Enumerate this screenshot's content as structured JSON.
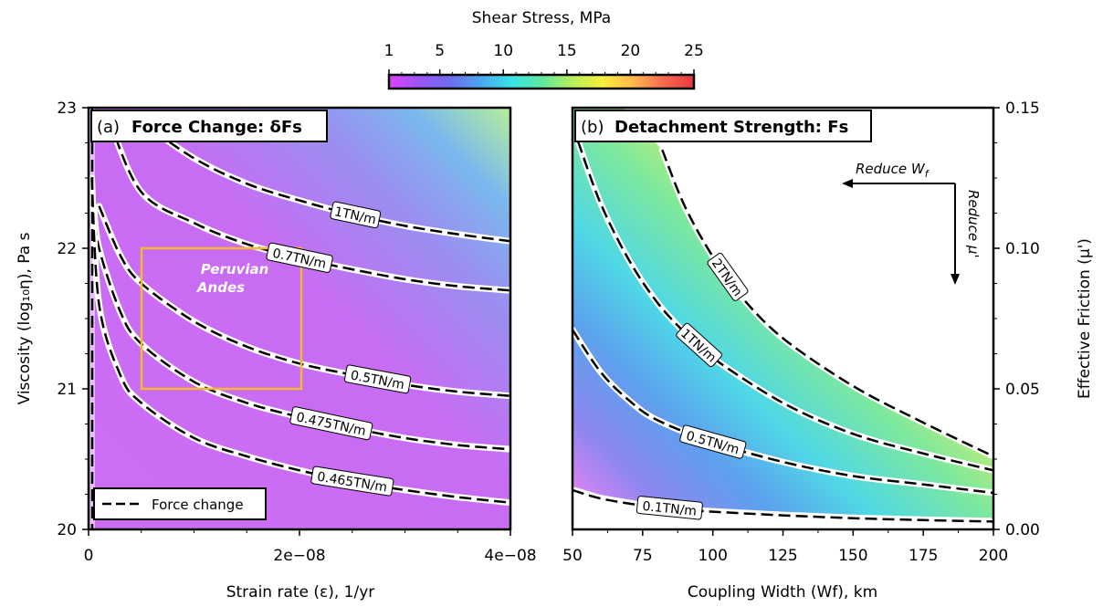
{
  "colorbar": {
    "title": "Shear Stress, MPa",
    "ticks": [
      "1",
      "5",
      "10",
      "15",
      "20",
      "25"
    ],
    "range": [
      1,
      25
    ],
    "colors": [
      "#e040fb",
      "#9a55f5",
      "#6f6cf0",
      "#4aa6ee",
      "#38e3e8",
      "#5ee8a0",
      "#b5ef5a",
      "#f8ef3e",
      "#ffb84a",
      "#f66a50",
      "#e5393f"
    ]
  },
  "chart_data": [
    {
      "type": "heatmap",
      "panel_label": "(a)",
      "title": "Force Change: δFs",
      "xlabel": "Strain rate (ε), 1/yr",
      "ylabel": "Viscosity (log₁₀η), Pa s",
      "xlim": [
        0,
        4e-08
      ],
      "ylim": [
        20,
        23
      ],
      "x_ticks": [
        "0",
        "2e−08",
        "4e−08"
      ],
      "y_ticks": [
        "20",
        "21",
        "22",
        "23"
      ],
      "legend": {
        "label": "Force change",
        "position": "bottom-left"
      },
      "box": {
        "label_line1": "Peruvian",
        "label_line2": "Andes",
        "x_range": [
          5e-09,
          2e-08
        ],
        "y_range": [
          21,
          22
        ],
        "color": "#f5b731"
      },
      "contours": [
        {
          "label": "1TN/m",
          "x": [
            5e-09,
            1e-08,
            1.5e-08,
            2e-08,
            2.5e-08,
            3e-08,
            3.5e-08,
            4e-08
          ],
          "y": [
            22.9,
            22.64,
            22.46,
            22.34,
            22.24,
            22.16,
            22.1,
            22.05
          ]
        },
        {
          "label": "0.7TN/m",
          "x": [
            2e-09,
            5e-09,
            1e-08,
            1.5e-08,
            2e-08,
            2.5e-08,
            3e-08,
            3.5e-08,
            4e-08
          ],
          "y": [
            22.9,
            22.4,
            22.18,
            22.03,
            21.93,
            21.85,
            21.78,
            21.73,
            21.7
          ]
        },
        {
          "label": "0.5TN/m",
          "x": [
            1e-09,
            3e-09,
            5e-09,
            1e-08,
            1.5e-08,
            2e-08,
            2.5e-08,
            3e-08,
            3.5e-08,
            4e-08
          ],
          "y": [
            22.3,
            21.95,
            21.75,
            21.48,
            21.3,
            21.18,
            21.1,
            21.03,
            20.98,
            20.95
          ]
        },
        {
          "label": "0.475TN/m",
          "x": [
            5e-10,
            1e-09,
            3e-09,
            5e-09,
            1e-08,
            1.5e-08,
            2e-08,
            2.5e-08,
            3e-08,
            3.5e-08,
            4e-08
          ],
          "y": [
            22.3,
            22.0,
            21.55,
            21.32,
            21.05,
            20.9,
            20.8,
            20.72,
            20.65,
            20.6,
            20.57
          ]
        },
        {
          "label": "0.465TN/m",
          "x": [
            3e-10,
            1e-09,
            3e-09,
            5e-09,
            1e-08,
            1.5e-08,
            2e-08,
            2.5e-08,
            3e-08,
            3.5e-08,
            4e-08
          ],
          "y": [
            22.5,
            21.6,
            21.1,
            20.9,
            20.65,
            20.52,
            20.42,
            20.34,
            20.28,
            20.23,
            20.19
          ]
        }
      ],
      "vertical_line_label": ""
    },
    {
      "type": "heatmap",
      "panel_label": "(b)",
      "title": "Detachment Strength: Fs",
      "xlabel": "Coupling Width (Wf), km",
      "ylabel": "Effective Friction (μ')",
      "xlim": [
        50,
        200
      ],
      "ylim": [
        0.0,
        0.15
      ],
      "x_ticks": [
        "50",
        "75",
        "100",
        "125",
        "150",
        "175",
        "200"
      ],
      "y_ticks": [
        "0.00",
        "0.05",
        "0.10",
        "0.15"
      ],
      "annotations": {
        "reduce_w": "Reduce W",
        "reduce_w_sub": "f",
        "reduce_mu": "Reduce μ'"
      },
      "contours": [
        {
          "label": "2TN/m",
          "x": [
            82,
            90,
            100,
            110,
            125,
            150,
            175,
            200
          ],
          "y": [
            0.135,
            0.115,
            0.097,
            0.083,
            0.068,
            0.051,
            0.038,
            0.026
          ]
        },
        {
          "label": "1TN/m",
          "x": [
            52,
            60,
            70,
            80,
            90,
            100,
            125,
            150,
            175,
            200
          ],
          "y": [
            0.138,
            0.116,
            0.096,
            0.081,
            0.07,
            0.061,
            0.045,
            0.034,
            0.027,
            0.021
          ]
        },
        {
          "label": "0.5TN/m",
          "x": [
            50,
            60,
            70,
            80,
            100,
            125,
            150,
            175,
            200
          ],
          "y": [
            0.071,
            0.056,
            0.046,
            0.039,
            0.031,
            0.024,
            0.019,
            0.016,
            0.013
          ]
        },
        {
          "label": "0.1TN/m",
          "x": [
            50,
            60,
            75,
            90,
            100,
            125,
            150,
            175,
            200
          ],
          "y": [
            0.014,
            0.011,
            0.0085,
            0.007,
            0.0063,
            0.005,
            0.004,
            0.0033,
            0.0028
          ]
        }
      ]
    }
  ]
}
